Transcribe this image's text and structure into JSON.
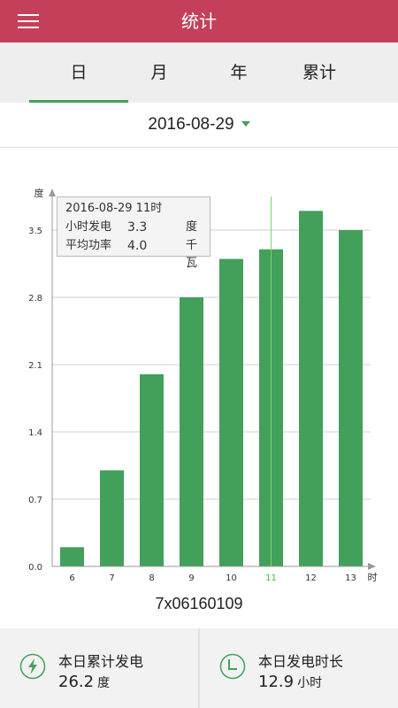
{
  "header": {
    "title": "统计"
  },
  "tabs": [
    {
      "label": "日",
      "active": true
    },
    {
      "label": "月",
      "active": false
    },
    {
      "label": "年",
      "active": false
    },
    {
      "label": "累计",
      "active": false
    }
  ],
  "date_selector": {
    "value": "2016-08-29"
  },
  "chart_data": {
    "type": "bar",
    "ylabel": "度",
    "xlabel": "时",
    "categories": [
      "6",
      "7",
      "8",
      "9",
      "10",
      "11",
      "12",
      "13"
    ],
    "values": [
      0.2,
      1.0,
      2.0,
      2.8,
      3.2,
      3.3,
      3.7,
      3.5
    ],
    "yticks": [
      0.0,
      0.7,
      1.4,
      2.1,
      2.8,
      3.5
    ],
    "ylim": [
      0,
      3.5
    ],
    "highlight_category": "11",
    "bar_color": "#43a05a",
    "highlight_color": "#6fd96f",
    "grid": true
  },
  "tooltip": {
    "title": "2016-08-29 11时",
    "rows": [
      {
        "label": "小时发电",
        "value": "3.3",
        "unit": "度"
      },
      {
        "label": "平均功率",
        "value": "4.0",
        "unit": "千瓦"
      }
    ]
  },
  "device": {
    "id": "7x06160109"
  },
  "summary": {
    "daily_energy": {
      "label": "本日累计发电",
      "value": "26.2",
      "unit": "度",
      "icon": "lightning-icon"
    },
    "daily_hours": {
      "label": "本日发电时长",
      "value": "12.9",
      "unit": "小时",
      "icon": "clock-icon"
    }
  },
  "colors": {
    "header": "#c4405a",
    "accent": "#43a05a"
  }
}
